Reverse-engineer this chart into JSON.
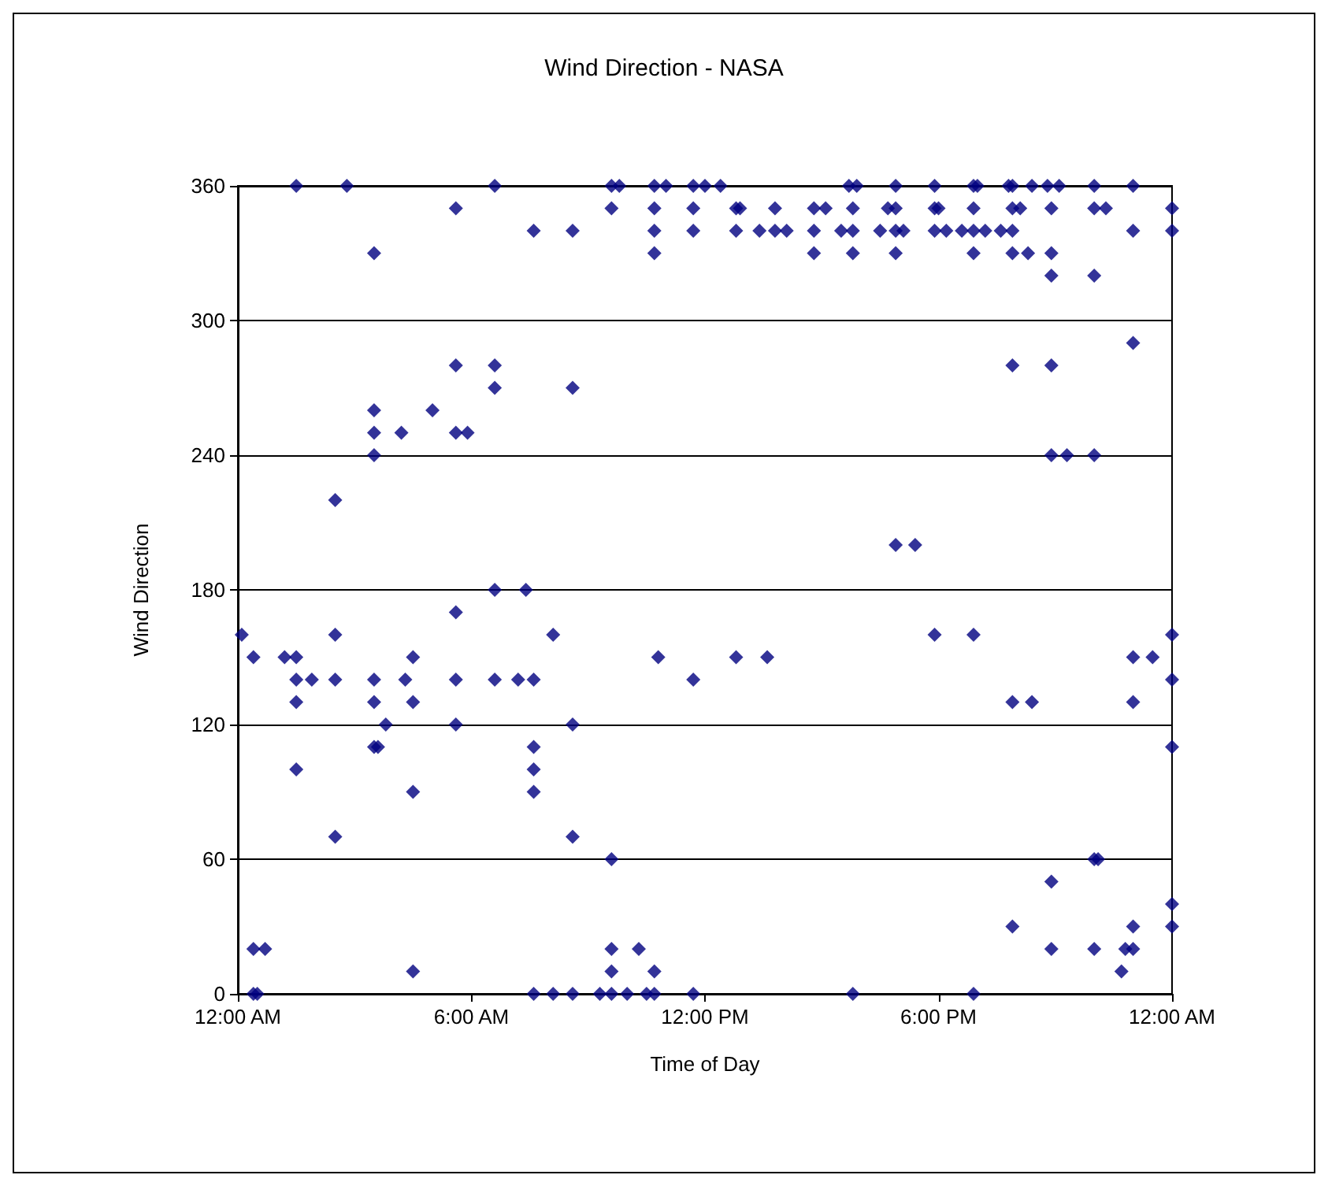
{
  "chart_data": {
    "type": "scatter",
    "title": "Wind Direction - NASA",
    "xlabel": "Time of Day",
    "ylabel": "Wind Direction",
    "xlim": [
      0,
      24
    ],
    "xticks": [
      {
        "value": 0,
        "label": "12:00 AM"
      },
      {
        "value": 6,
        "label": "6:00 AM"
      },
      {
        "value": 12,
        "label": "12:00 PM"
      },
      {
        "value": 18,
        "label": "6:00 PM"
      },
      {
        "value": 24,
        "label": "12:00 AM"
      }
    ],
    "ylim": [
      0,
      360
    ],
    "yticks": [
      0,
      60,
      120,
      180,
      240,
      300,
      360
    ],
    "grid": "y",
    "marker": "diamond",
    "series": [
      {
        "color": "#000080",
        "x": [
          0.1,
          0.4,
          0.4,
          0.5,
          0.4,
          0.7,
          1.2,
          1.5,
          1.5,
          1.5,
          1.5,
          1.5,
          1.9,
          2.5,
          2.5,
          2.5,
          2.5,
          2.8,
          3.5,
          3.5,
          3.5,
          3.6,
          3.5,
          3.5,
          3.5,
          3.5,
          3.8,
          4.2,
          4.3,
          4.5,
          4.5,
          4.5,
          4.5,
          5.0,
          5.6,
          5.6,
          5.6,
          5.6,
          5.6,
          5.6,
          5.9,
          6.6,
          6.6,
          6.6,
          6.6,
          6.6,
          7.2,
          7.4,
          7.6,
          7.6,
          7.6,
          7.6,
          7.6,
          7.6,
          8.1,
          8.1,
          8.6,
          8.6,
          8.6,
          8.6,
          8.6,
          9.3,
          9.6,
          9.6,
          9.6,
          9.6,
          9.6,
          9.6,
          9.8,
          10.0,
          10.3,
          10.5,
          10.7,
          10.7,
          10.7,
          10.7,
          10.7,
          10.7,
          10.8,
          11.0,
          11.7,
          11.7,
          11.7,
          11.7,
          11.7,
          12.0,
          12.4,
          12.8,
          12.9,
          12.8,
          12.8,
          13.4,
          13.6,
          13.8,
          13.8,
          14.1,
          14.8,
          14.8,
          14.8,
          15.1,
          15.5,
          15.7,
          15.8,
          15.8,
          15.8,
          15.9,
          15.8,
          16.5,
          16.7,
          16.9,
          16.9,
          16.9,
          16.9,
          16.9,
          17.1,
          17.4,
          17.9,
          17.9,
          17.9,
          17.9,
          18.0,
          18.2,
          18.6,
          18.9,
          18.9,
          18.9,
          18.9,
          18.9,
          18.9,
          19.0,
          19.2,
          19.6,
          19.8,
          19.9,
          19.9,
          19.9,
          19.9,
          19.9,
          19.9,
          19.9,
          20.1,
          20.3,
          20.4,
          20.4,
          20.8,
          20.9,
          20.9,
          20.9,
          20.9,
          20.9,
          20.9,
          20.9,
          21.1,
          21.3,
          22.0,
          22.0,
          22.0,
          22.0,
          22.0,
          22.0,
          22.1,
          22.3,
          22.7,
          22.8,
          23.0,
          23.0,
          23.0,
          23.0,
          23.0,
          23.0,
          23.0,
          23.5,
          24,
          24,
          24,
          24,
          24,
          24,
          24
        ],
        "values": [
          160,
          150,
          0,
          0,
          20,
          20,
          150,
          150,
          140,
          130,
          100,
          360,
          140,
          160,
          140,
          70,
          220,
          360,
          140,
          130,
          110,
          110,
          240,
          250,
          260,
          330,
          120,
          250,
          140,
          150,
          130,
          90,
          10,
          260,
          250,
          280,
          350,
          170,
          140,
          120,
          250,
          360,
          280,
          270,
          180,
          140,
          140,
          180,
          140,
          110,
          100,
          90,
          340,
          0,
          160,
          0,
          340,
          270,
          120,
          70,
          0,
          0,
          0,
          20,
          10,
          60,
          350,
          360,
          360,
          0,
          20,
          0,
          0,
          10,
          360,
          350,
          340,
          330,
          150,
          360,
          360,
          350,
          340,
          140,
          0,
          360,
          360,
          350,
          350,
          340,
          150,
          340,
          150,
          350,
          340,
          340,
          350,
          340,
          330,
          350,
          340,
          360,
          350,
          340,
          330,
          360,
          0,
          340,
          350,
          350,
          340,
          330,
          360,
          200,
          340,
          200,
          360,
          350,
          340,
          160,
          350,
          340,
          340,
          360,
          350,
          340,
          330,
          160,
          0,
          360,
          340,
          340,
          360,
          360,
          350,
          340,
          330,
          280,
          130,
          30,
          350,
          330,
          360,
          130,
          360,
          350,
          330,
          320,
          280,
          240,
          50,
          20,
          360,
          240,
          360,
          350,
          320,
          240,
          60,
          20,
          60,
          350,
          10,
          20,
          360,
          340,
          290,
          150,
          130,
          30,
          20,
          150,
          350,
          340,
          160,
          140,
          110,
          40,
          30
        ]
      }
    ]
  }
}
